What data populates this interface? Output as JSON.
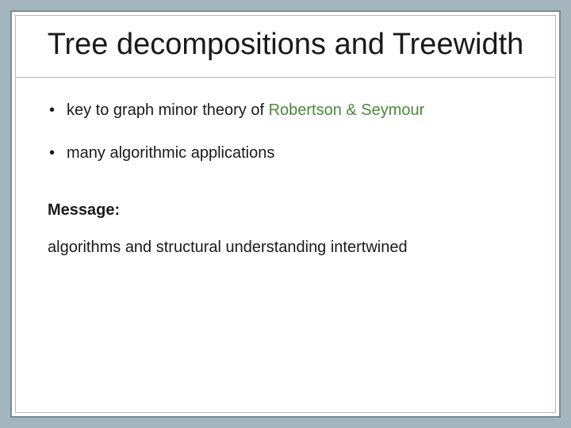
{
  "slide": {
    "title": "Tree decompositions and Treewidth",
    "bullets": [
      {
        "prefix": "key to graph minor theory of ",
        "highlight": "Robertson & Seymour",
        "suffix": ""
      },
      {
        "prefix": "many algorithmic applications",
        "highlight": "",
        "suffix": ""
      }
    ],
    "message_label": "Message:",
    "message_text": "algorithms and structural understanding intertwined"
  },
  "style": {
    "background_color": "#a5b5bd",
    "slide_bg": "#ffffff",
    "outer_border_color": "#7a8a92",
    "inner_border_color": "#b8b8b8",
    "title_fontsize": 38,
    "body_fontsize": 20,
    "text_color": "#1a1a1a",
    "highlight_color": "#4a8a3a",
    "font_family": "Arial"
  }
}
